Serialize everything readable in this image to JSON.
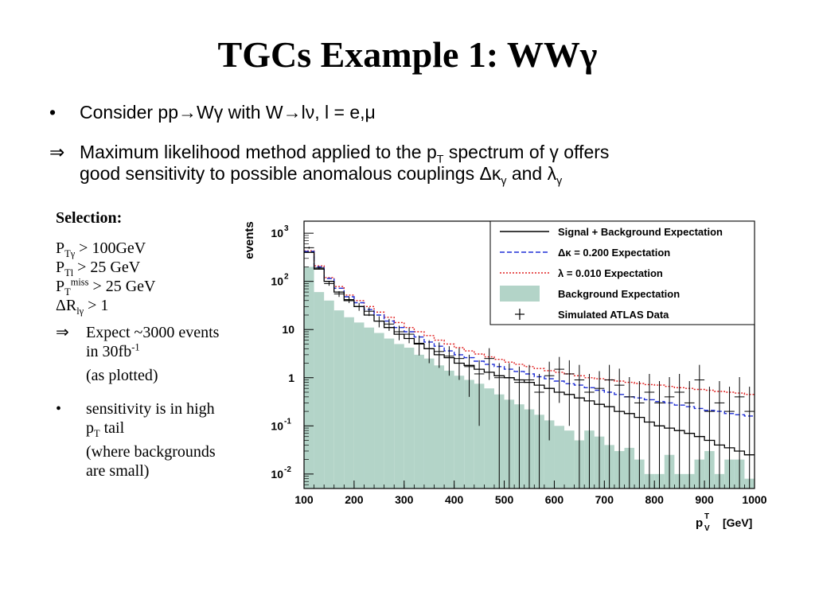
{
  "slide": {
    "title_main": "TGCs Example 1: WW",
    "title_greek": "γ"
  },
  "bullets": [
    {
      "marker": "•",
      "text": "Consider pp→Wγ with W→lν, l = e,μ"
    },
    {
      "marker": "⇒",
      "text": "Maximum likelihood method applied to the p",
      "sub": "T",
      "text2": " spectrum of γ offers"
    },
    {
      "text": "good sensitivity to possible anomalous couplings  Δκ",
      "sub": "γ",
      "text2": " and λ",
      "sub2": "γ"
    }
  ],
  "selection": {
    "heading": "Selection:",
    "cuts": [
      {
        "base": "P",
        "sub": "Tγ",
        "sup": "",
        "rest": " > 100GeV"
      },
      {
        "base": "P",
        "sub": "Tl",
        "sup": "",
        "rest": " > 25 GeV"
      },
      {
        "base": "P",
        "sub": "T",
        "sup": "miss",
        "rest": " > 25 GeV"
      },
      {
        "base": "ΔR",
        "sub": "lγ",
        "sup": "",
        "rest": " > 1"
      }
    ],
    "expect_marker": "⇒",
    "expect_line1": "Expect ~3000 events",
    "expect_line2": "in 30fb",
    "expect_sup": "-1",
    "expect_note": "(as plotted)",
    "sens_marker": "•",
    "sens_line1": "sensitivity is in high",
    "sens_line2a": "p",
    "sens_line2sub": "T",
    "sens_line2b": " tail",
    "sens_note1": "(where backgrounds",
    "sens_note2": "are small)"
  },
  "chart_data": {
    "type": "histogram",
    "ylabel": "events",
    "xlabel": "p",
    "xlabel_sup": "T",
    "xlabel_sub": "V",
    "xlabel_unit": "[GeV]",
    "xlim": [
      100,
      1000
    ],
    "x_ticks": [
      100,
      200,
      300,
      400,
      500,
      600,
      700,
      800,
      900,
      1000
    ],
    "ylim_log10": [
      -2.3,
      3.25
    ],
    "y_scale": "log",
    "y_ticks": [
      {
        "value": 1000,
        "label": "10",
        "sup": "3"
      },
      {
        "value": 100,
        "label": "10",
        "sup": "2"
      },
      {
        "value": 10,
        "label": "10",
        "sup": ""
      },
      {
        "value": 1,
        "label": "1",
        "sup": ""
      },
      {
        "value": 0.1,
        "label": "10",
        "sup": "-1"
      },
      {
        "value": 0.01,
        "label": "10",
        "sup": "-2"
      }
    ],
    "bin_width": 20,
    "bin_start": 100,
    "legend_position": "top-right",
    "legend": [
      {
        "label": "Signal + Background Expectation",
        "style": "solid",
        "color": "#000000"
      },
      {
        "label": "Δκ =    0.200 Expectation",
        "style": "dashed",
        "color": "#1f2fd6"
      },
      {
        "label": "λ  =    0.010 Expectation",
        "style": "dotted",
        "color": "#e02020"
      },
      {
        "label": "Background Expectation",
        "style": "fill",
        "color": "#b3d4c8"
      },
      {
        "label": "Simulated ATLAS Data",
        "style": "marker",
        "color": "#000000"
      }
    ],
    "series": [
      {
        "name": "Background Expectation",
        "color": "#b3d4c8",
        "values": [
          200,
          60,
          40,
          25,
          18,
          14,
          11,
          8.5,
          6.5,
          5,
          4.2,
          3,
          2.5,
          1.8,
          1.4,
          1.1,
          0.9,
          0.75,
          0.6,
          0.45,
          0.35,
          0.28,
          0.22,
          0.17,
          0.13,
          0.1,
          0.08,
          0.05,
          0.08,
          0.06,
          0.04,
          0.03,
          0.035,
          0.02,
          0.01,
          0.01,
          0.025,
          0.01,
          0.01,
          0.02,
          0.03,
          0.01,
          0.02,
          0.02,
          0.008
        ]
      },
      {
        "name": "Signal + Background Expectation",
        "color": "#000000",
        "values": [
          400,
          180,
          100,
          60,
          40,
          30,
          20,
          15,
          11,
          8,
          6.5,
          5,
          4,
          3,
          2.6,
          2,
          1.8,
          1.5,
          1.3,
          1.1,
          1.0,
          0.9,
          0.8,
          0.7,
          0.6,
          0.5,
          0.45,
          0.38,
          0.33,
          0.28,
          0.25,
          0.2,
          0.18,
          0.15,
          0.12,
          0.1,
          0.09,
          0.08,
          0.07,
          0.06,
          0.05,
          0.04,
          0.035,
          0.03,
          0.025
        ]
      },
      {
        "name": "Δκ =    0.200 Expectation",
        "color": "#1f2fd6",
        "values": [
          420,
          200,
          115,
          72,
          48,
          36,
          26,
          20,
          15,
          11,
          9,
          7,
          5.5,
          4.5,
          3.6,
          3,
          2.6,
          2.2,
          1.9,
          1.7,
          1.5,
          1.35,
          1.2,
          1.05,
          0.95,
          0.85,
          0.75,
          0.7,
          0.62,
          0.55,
          0.5,
          0.45,
          0.4,
          0.38,
          0.35,
          0.32,
          0.3,
          0.27,
          0.25,
          0.23,
          0.21,
          0.2,
          0.18,
          0.17,
          0.16
        ]
      },
      {
        "name": "λ  =    0.010 Expectation",
        "color": "#e02020",
        "values": [
          430,
          210,
          120,
          78,
          52,
          40,
          30,
          23,
          18,
          14,
          11,
          9,
          7.5,
          6,
          5,
          4.2,
          3.6,
          3.1,
          2.7,
          2.4,
          2.1,
          1.9,
          1.7,
          1.55,
          1.4,
          1.3,
          1.2,
          1.1,
          1.0,
          0.95,
          0.9,
          0.85,
          0.8,
          0.76,
          0.72,
          0.7,
          0.66,
          0.62,
          0.6,
          0.57,
          0.55,
          0.52,
          0.5,
          0.48,
          0.45
        ]
      },
      {
        "name": "Simulated ATLAS Data",
        "color": "#000000",
        "x": [
          110,
          130,
          150,
          170,
          190,
          210,
          230,
          250,
          270,
          290,
          310,
          330,
          350,
          370,
          390,
          410,
          430,
          450,
          470,
          490,
          510,
          530,
          550,
          570,
          590,
          610,
          630,
          650,
          670,
          690,
          710,
          730,
          750,
          770,
          790,
          810,
          830,
          850,
          870,
          890,
          910,
          930,
          950,
          970,
          990
        ],
        "y": [
          500,
          190,
          90,
          55,
          42,
          30,
          24,
          15,
          13,
          9,
          8,
          5.2,
          4,
          3.5,
          2.8,
          2.5,
          1.7,
          1.2,
          2.5,
          1.0,
          1.0,
          0.8,
          0.9,
          0.5,
          1.1,
          1.5,
          1.2,
          0.9,
          0.5,
          0.6,
          0.9,
          0.7,
          0.4,
          0.3,
          0.5,
          0.3,
          0.4,
          0.5,
          0.3,
          0.9,
          0.2,
          0.3,
          0.2,
          0.4,
          0.2
        ],
        "err": [
          25,
          14,
          9,
          7.5,
          6.5,
          5.5,
          4.9,
          3.9,
          3.6,
          3,
          2.8,
          2.3,
          2,
          1.9,
          1.7,
          1.6,
          1.3,
          1.1,
          1.6,
          1.0,
          1.0,
          0.9,
          0.95,
          0.7,
          1.05,
          1.2,
          1.1,
          0.95,
          0.7,
          0.77,
          0.95,
          0.84,
          0.63,
          0.55,
          0.7,
          0.55,
          0.63,
          0.7,
          0.55,
          0.95,
          0.45,
          0.55,
          0.45,
          0.63,
          0.45
        ]
      }
    ]
  }
}
